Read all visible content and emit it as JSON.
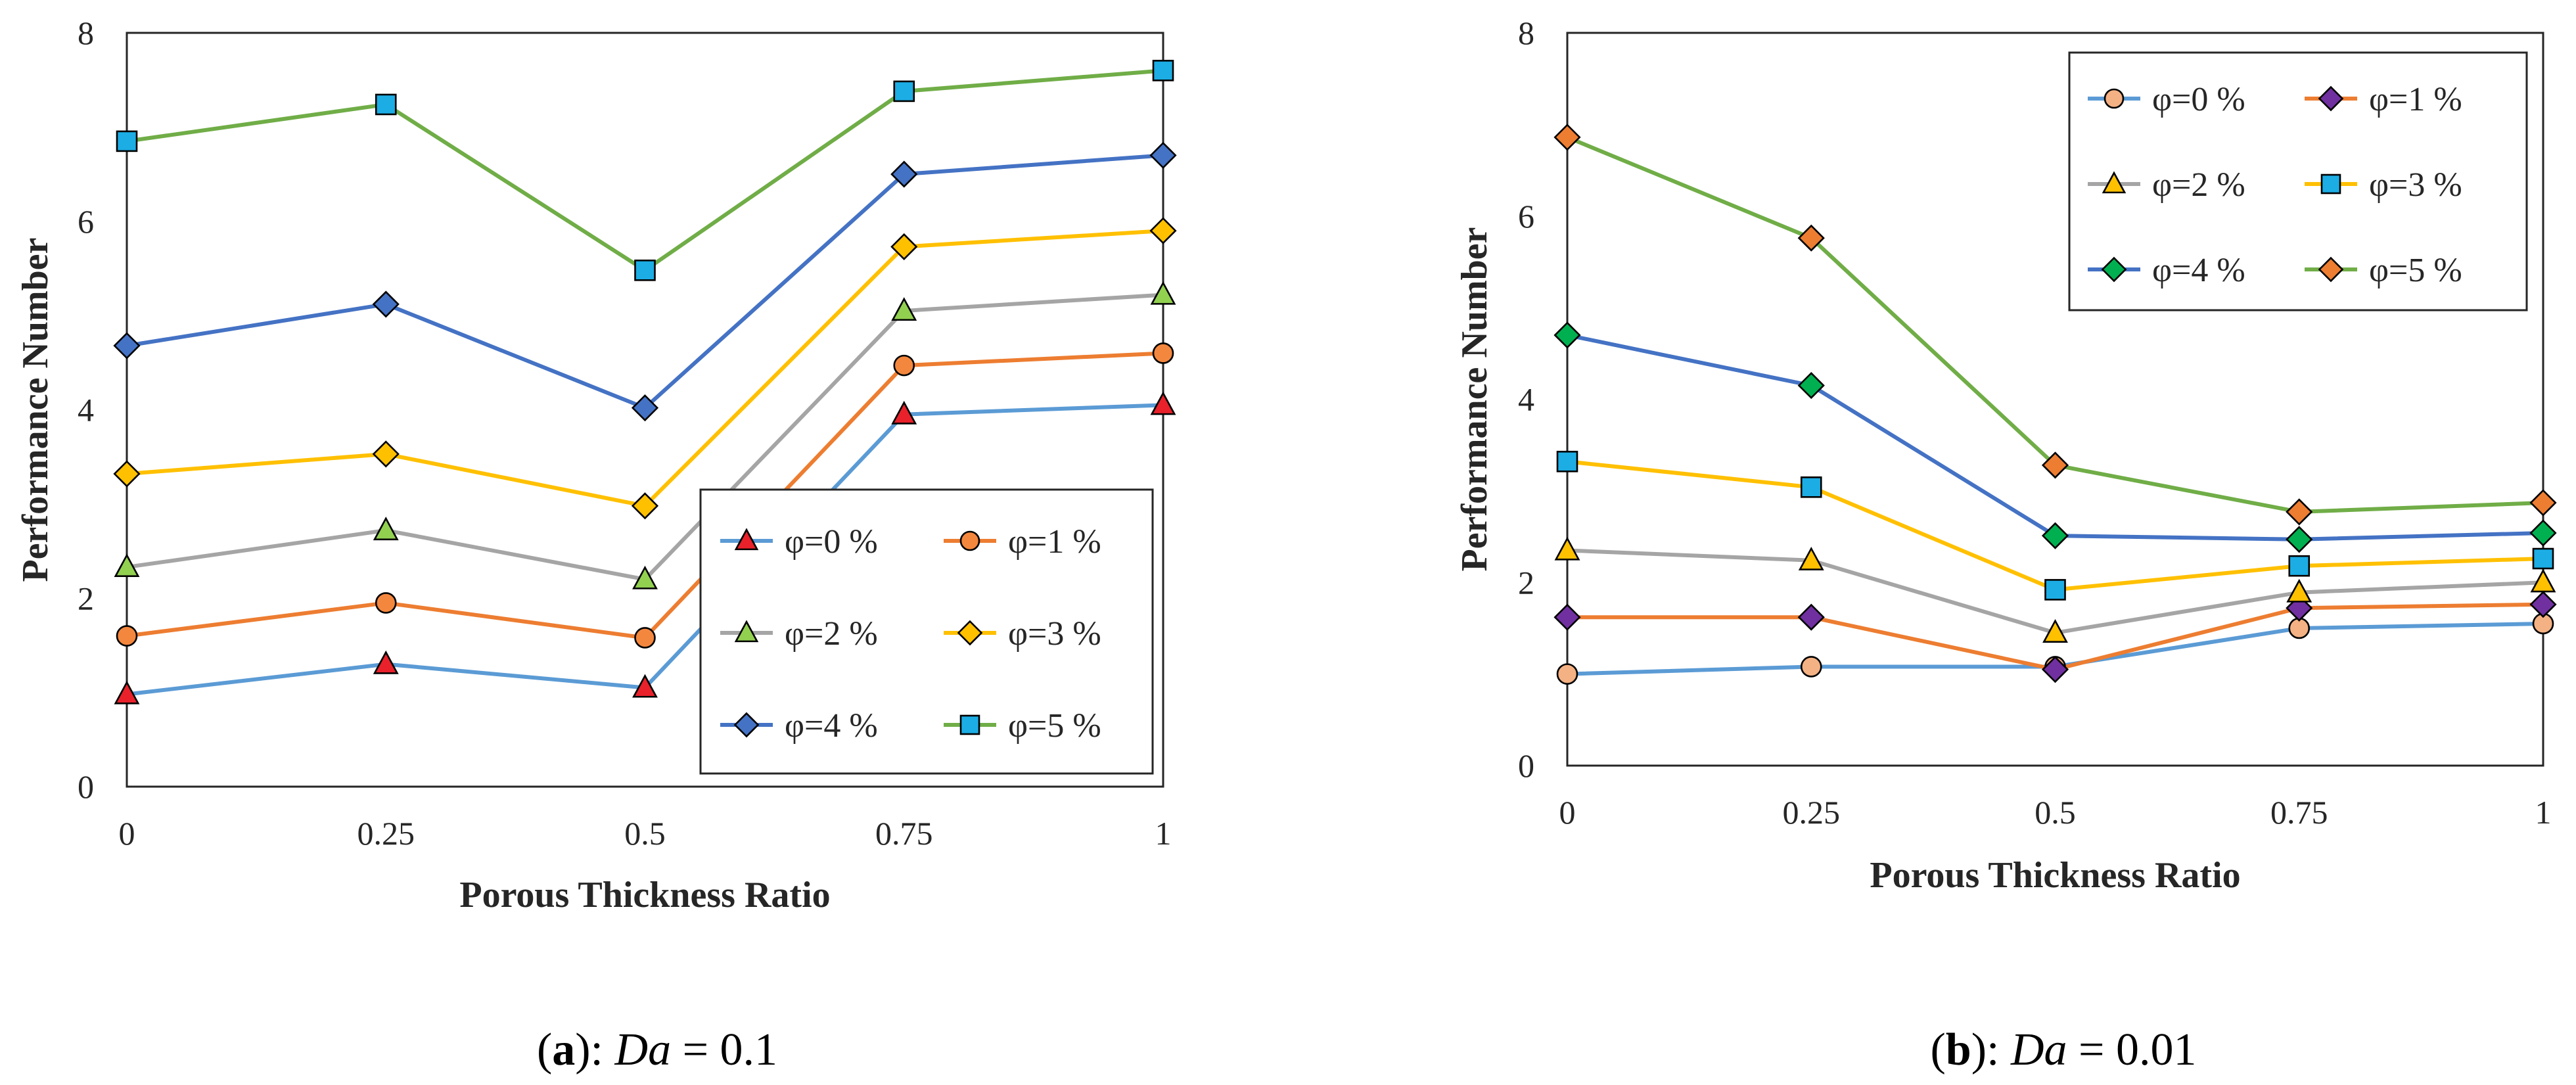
{
  "colors": {
    "series_lines": [
      "#5B9BD5",
      "#ED7D31",
      "#A5A5A5",
      "#FFC000",
      "#4472C4",
      "#70AD47"
    ],
    "axis": "#262626",
    "text": "#262626",
    "marker_outline": "#000000"
  },
  "chart_data": [
    {
      "type": "line",
      "panel_label": "(a)",
      "caption_prefix": "(",
      "caption_letter": "a",
      "caption_suffix": "): ",
      "caption_var": "Da",
      "caption_eq": " = 0.1",
      "xlabel": "Porous Thickness Ratio",
      "ylabel": "Performance Number",
      "x": [
        0,
        0.25,
        0.5,
        0.75,
        1
      ],
      "x_tick_labels": [
        "0",
        "0.25",
        "0.5",
        "0.75",
        "1"
      ],
      "ylim": [
        0,
        8
      ],
      "y_ticks": [
        0,
        2,
        4,
        6,
        8
      ],
      "y_tick_labels": [
        "0",
        "2",
        "4",
        "6",
        "8"
      ],
      "legend_placement": "bottom-right",
      "series": [
        {
          "name": "φ=0 %",
          "values": [
            0.98,
            1.3,
            1.05,
            3.95,
            4.05
          ],
          "marker": "triangle",
          "line_color": "#5B9BD5",
          "marker_color": "#E8212B"
        },
        {
          "name": "φ=1 %",
          "values": [
            1.6,
            1.95,
            1.58,
            4.47,
            4.6
          ],
          "marker": "circle",
          "line_color": "#ED7D31",
          "marker_color": "#F4873E"
        },
        {
          "name": "φ=2 %",
          "values": [
            2.33,
            2.72,
            2.2,
            5.05,
            5.22
          ],
          "marker": "triangle",
          "line_color": "#A5A5A5",
          "marker_color": "#92D050"
        },
        {
          "name": "φ=3 %",
          "values": [
            3.32,
            3.53,
            2.98,
            5.73,
            5.9
          ],
          "marker": "diamond",
          "line_color": "#FFC000",
          "marker_color": "#FFC000"
        },
        {
          "name": "φ=4 %",
          "values": [
            4.68,
            5.12,
            4.02,
            6.5,
            6.7
          ],
          "marker": "diamond",
          "line_color": "#4472C4",
          "marker_color": "#4472C4"
        },
        {
          "name": "φ=5 %",
          "values": [
            6.85,
            7.24,
            5.48,
            7.38,
            7.6
          ],
          "marker": "square",
          "line_color": "#70AD47",
          "marker_color": "#1CADE4"
        }
      ]
    },
    {
      "type": "line",
      "panel_label": "(b)",
      "caption_prefix": "(",
      "caption_letter": "b",
      "caption_suffix": "): ",
      "caption_var": "Da",
      "caption_eq": " = 0.01",
      "xlabel": "Porous Thickness Ratio",
      "ylabel": "Performance Number",
      "x": [
        0,
        0.25,
        0.5,
        0.75,
        1
      ],
      "x_tick_labels": [
        "0",
        "0.25",
        "0.5",
        "0.75",
        "1"
      ],
      "ylim": [
        0,
        8
      ],
      "y_ticks": [
        0,
        2,
        4,
        6,
        8
      ],
      "y_tick_labels": [
        "0",
        "2",
        "4",
        "6",
        "8"
      ],
      "legend_placement": "top-right",
      "series": [
        {
          "name": "φ=0 %",
          "values": [
            1.0,
            1.08,
            1.08,
            1.5,
            1.55
          ],
          "marker": "circle",
          "line_color": "#5B9BD5",
          "marker_color": "#F4B183"
        },
        {
          "name": "φ=1 %",
          "values": [
            1.62,
            1.62,
            1.05,
            1.72,
            1.76
          ],
          "marker": "diamond",
          "line_color": "#ED7D31",
          "marker_color": "#7030A0"
        },
        {
          "name": "φ=2 %",
          "values": [
            2.35,
            2.24,
            1.45,
            1.89,
            2.0
          ],
          "marker": "triangle",
          "line_color": "#A5A5A5",
          "marker_color": "#FFC000"
        },
        {
          "name": "φ=3 %",
          "values": [
            3.32,
            3.04,
            1.92,
            2.18,
            2.26
          ],
          "marker": "square",
          "line_color": "#FFC000",
          "marker_color": "#1CADE4"
        },
        {
          "name": "φ=4 %",
          "values": [
            4.7,
            4.15,
            2.51,
            2.47,
            2.54
          ],
          "marker": "diamond",
          "line_color": "#4472C4",
          "marker_color": "#00B050"
        },
        {
          "name": "φ=5 %",
          "values": [
            6.86,
            5.76,
            3.28,
            2.77,
            2.87
          ],
          "marker": "diamond",
          "line_color": "#70AD47",
          "marker_color": "#ED7D31"
        }
      ]
    }
  ]
}
